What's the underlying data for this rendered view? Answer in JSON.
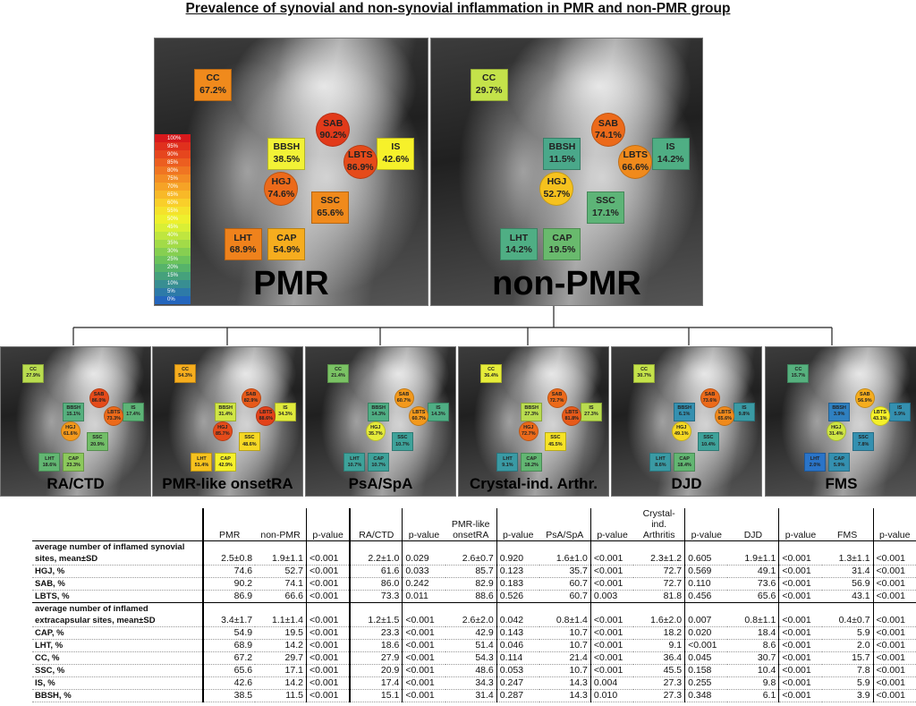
{
  "title": "Prevalence of synovial and non-synovial inflammation in PMR and non-PMR group",
  "colorbar": [
    "100%",
    "95%",
    "90%",
    "85%",
    "80%",
    "75%",
    "70%",
    "65%",
    "60%",
    "55%",
    "50%",
    "45%",
    "40%",
    "35%",
    "30%",
    "25%",
    "20%",
    "15%",
    "10%",
    "5%",
    "0%"
  ],
  "panels": [
    {
      "label": "PMR",
      "m": {
        "cc": {
          "name": "CC",
          "val": "67.2%",
          "color": "#f08a1c"
        },
        "sab": {
          "name": "SAB",
          "val": "90.2%",
          "color": "#e23a1a"
        },
        "bbsh": {
          "name": "BBSH",
          "val": "38.5%",
          "color": "#f2f236"
        },
        "is": {
          "name": "IS",
          "val": "42.6%",
          "color": "#f6f12a"
        },
        "lbts": {
          "name": "LBTS",
          "val": "86.9%",
          "color": "#e54b1a"
        },
        "hgj": {
          "name": "HGJ",
          "val": "74.6%",
          "color": "#ec6a1a"
        },
        "ssc": {
          "name": "SSC",
          "val": "65.6%",
          "color": "#f08a1c"
        },
        "lht": {
          "name": "LHT",
          "val": "68.9%",
          "color": "#ef821c"
        },
        "cap": {
          "name": "CAP",
          "val": "54.9%",
          "color": "#f6ad1e"
        }
      }
    },
    {
      "label": "non-PMR",
      "m": {
        "cc": {
          "name": "CC",
          "val": "29.7%",
          "color": "#c4e24a"
        },
        "sab": {
          "name": "SAB",
          "val": "74.1%",
          "color": "#ec6a1a"
        },
        "bbsh": {
          "name": "BBSH",
          "val": "11.5%",
          "color": "#4aa88a"
        },
        "is": {
          "name": "IS",
          "val": "14.2%",
          "color": "#4fae84"
        },
        "lbts": {
          "name": "LBTS",
          "val": "66.6%",
          "color": "#f08a1c"
        },
        "hgj": {
          "name": "HGJ",
          "val": "52.7%",
          "color": "#f6c21e"
        },
        "ssc": {
          "name": "SSC",
          "val": "17.1%",
          "color": "#5db477"
        },
        "lht": {
          "name": "LHT",
          "val": "14.2%",
          "color": "#4fae84"
        },
        "cap": {
          "name": "CAP",
          "val": "19.5%",
          "color": "#69ba6d"
        }
      }
    },
    {
      "label": "RA/CTD",
      "m": {
        "cc": {
          "name": "CC",
          "val": "27.9%",
          "color": "#b9dc4f"
        },
        "sab": {
          "name": "SAB",
          "val": "86.0%",
          "color": "#e54b1a"
        },
        "bbsh": {
          "name": "BBSH",
          "val": "15.1%",
          "color": "#56b07e"
        },
        "is": {
          "name": "IS",
          "val": "17.4%",
          "color": "#5db477"
        },
        "lbts": {
          "name": "LBTS",
          "val": "73.3%",
          "color": "#ec6a1a"
        },
        "hgj": {
          "name": "HGJ",
          "val": "61.6%",
          "color": "#f3991c"
        },
        "ssc": {
          "name": "SSC",
          "val": "20.9%",
          "color": "#72be68"
        },
        "lht": {
          "name": "LHT",
          "val": "18.6%",
          "color": "#62b672"
        },
        "cap": {
          "name": "CAP",
          "val": "23.3%",
          "color": "#8cc95c"
        }
      }
    },
    {
      "label": "PMR-like onsetRA",
      "m": {
        "cc": {
          "name": "CC",
          "val": "54.3%",
          "color": "#f6ad1e"
        },
        "sab": {
          "name": "SAB",
          "val": "82.9%",
          "color": "#e75a1a"
        },
        "bbsh": {
          "name": "BBSH",
          "val": "31.4%",
          "color": "#d0e644"
        },
        "is": {
          "name": "IS",
          "val": "34.3%",
          "color": "#e0ea3c"
        },
        "lbts": {
          "name": "LBTS",
          "val": "88.6%",
          "color": "#e3421a"
        },
        "hgj": {
          "name": "HGJ",
          "val": "85.7%",
          "color": "#e54b1a"
        },
        "ssc": {
          "name": "SSC",
          "val": "48.6%",
          "color": "#f6d824"
        },
        "lht": {
          "name": "LHT",
          "val": "51.4%",
          "color": "#f6c21e"
        },
        "cap": {
          "name": "CAP",
          "val": "42.9%",
          "color": "#f6f12a"
        }
      }
    },
    {
      "label": "PsA/SpA",
      "m": {
        "cc": {
          "name": "CC",
          "val": "21.4%",
          "color": "#7ac264"
        },
        "sab": {
          "name": "SAB",
          "val": "60.7%",
          "color": "#f3991c"
        },
        "bbsh": {
          "name": "BBSH",
          "val": "14.3%",
          "color": "#4fae84"
        },
        "is": {
          "name": "IS",
          "val": "14.3%",
          "color": "#4fae84"
        },
        "lbts": {
          "name": "LBTS",
          "val": "60.7%",
          "color": "#f3991c"
        },
        "hgj": {
          "name": "HGJ",
          "val": "35.7%",
          "color": "#e6ec3a"
        },
        "ssc": {
          "name": "SSC",
          "val": "10.7%",
          "color": "#3ea29a"
        },
        "lht": {
          "name": "LHT",
          "val": "10.7%",
          "color": "#3ea29a"
        },
        "cap": {
          "name": "CAP",
          "val": "10.7%",
          "color": "#3ea29a"
        }
      }
    },
    {
      "label": "Crystal-ind. Arthr.",
      "m": {
        "cc": {
          "name": "CC",
          "val": "36.4%",
          "color": "#e6ec3a"
        },
        "sab": {
          "name": "SAB",
          "val": "72.7%",
          "color": "#ec6a1a"
        },
        "bbsh": {
          "name": "BBSH",
          "val": "27.3%",
          "color": "#b9dc4f"
        },
        "is": {
          "name": "IS",
          "val": "27.3%",
          "color": "#b9dc4f"
        },
        "lbts": {
          "name": "LBTS",
          "val": "81.8%",
          "color": "#e75a1a"
        },
        "hgj": {
          "name": "HGJ",
          "val": "72.7%",
          "color": "#ec6a1a"
        },
        "ssc": {
          "name": "SSC",
          "val": "45.5%",
          "color": "#f6e326"
        },
        "lht": {
          "name": "LHT",
          "val": "9.1%",
          "color": "#3a9aa4"
        },
        "cap": {
          "name": "CAP",
          "val": "18.2%",
          "color": "#62b672"
        }
      }
    },
    {
      "label": "DJD",
      "m": {
        "cc": {
          "name": "CC",
          "val": "30.7%",
          "color": "#c4e24a"
        },
        "sab": {
          "name": "SAB",
          "val": "73.6%",
          "color": "#ec6a1a"
        },
        "bbsh": {
          "name": "BBSH",
          "val": "6.1%",
          "color": "#3490b0"
        },
        "is": {
          "name": "IS",
          "val": "9.8%",
          "color": "#3a9aa4"
        },
        "lbts": {
          "name": "LBTS",
          "val": "65.6%",
          "color": "#f08a1c"
        },
        "hgj": {
          "name": "HGJ",
          "val": "49.1%",
          "color": "#f6d824"
        },
        "ssc": {
          "name": "SSC",
          "val": "10.4%",
          "color": "#3ea29a"
        },
        "lht": {
          "name": "LHT",
          "val": "8.6%",
          "color": "#3a9aa4"
        },
        "cap": {
          "name": "CAP",
          "val": "18.4%",
          "color": "#62b672"
        }
      }
    },
    {
      "label": "FMS",
      "m": {
        "cc": {
          "name": "CC",
          "val": "15.7%",
          "color": "#56b07e"
        },
        "sab": {
          "name": "SAB",
          "val": "56.9%",
          "color": "#f6ad1e"
        },
        "bbsh": {
          "name": "BBSH",
          "val": "3.9%",
          "color": "#2f80c0"
        },
        "is": {
          "name": "IS",
          "val": "5.9%",
          "color": "#3490b0"
        },
        "lbts": {
          "name": "LBTS",
          "val": "43.1%",
          "color": "#f6f12a"
        },
        "hgj": {
          "name": "HGJ",
          "val": "31.4%",
          "color": "#d0e644"
        },
        "ssc": {
          "name": "SSC",
          "val": "7.8%",
          "color": "#3490b0"
        },
        "lht": {
          "name": "LHT",
          "val": "2.0%",
          "color": "#2a74c8"
        },
        "cap": {
          "name": "CAP",
          "val": "5.9%",
          "color": "#3490b0"
        }
      }
    }
  ],
  "table": {
    "headers": [
      "PMR",
      "non-PMR",
      "p-value",
      "RA/CTD",
      "p-value",
      "PMR-like onsetRA",
      "p-value",
      "PsA/SpA",
      "p-value",
      "Crystal-ind. Arthritis",
      "p-value",
      "DJD",
      "p-value",
      "FMS",
      "p-value"
    ],
    "rows": [
      {
        "label1": "average number of inflamed synovial",
        "label2": "sites, mean±SD",
        "cells": [
          "2.5±0.8",
          "1.9±1.1",
          "<0.001",
          "2.2±1.0",
          "0.029",
          "2.6±0.7",
          "0.920",
          "1.6±1.0",
          "<0.001",
          "2.3±1.2",
          "0.605",
          "1.9±1.1",
          "<0.001",
          "1.3±1.1",
          "<0.001"
        ]
      },
      {
        "label1": "HGJ, %",
        "cells": [
          "74.6",
          "52.7",
          "<0.001",
          "61.6",
          "0.033",
          "85.7",
          "0.123",
          "35.7",
          "<0.001",
          "72.7",
          "0.569",
          "49.1",
          "<0.001",
          "31.4",
          "<0.001"
        ]
      },
      {
        "label1": "SAB, %",
        "cells": [
          "90.2",
          "74.1",
          "<0.001",
          "86.0",
          "0.242",
          "82.9",
          "0.183",
          "60.7",
          "<0.001",
          "72.7",
          "0.110",
          "73.6",
          "<0.001",
          "56.9",
          "<0.001"
        ]
      },
      {
        "label1": "LBTS, %",
        "cells": [
          "86.9",
          "66.6",
          "<0.001",
          "73.3",
          "0.011",
          "88.6",
          "0.526",
          "60.7",
          "0.003",
          "81.8",
          "0.456",
          "65.6",
          "<0.001",
          "43.1",
          "<0.001"
        ]
      },
      {
        "label1": "average number of inflamed",
        "label2": "extracapsular sites, mean±SD",
        "cells": [
          "3.4±1.7",
          "1.1±1.4",
          "<0.001",
          "1.2±1.5",
          "<0.001",
          "2.6±2.0",
          "0.042",
          "0.8±1.4",
          "<0.001",
          "1.6±2.0",
          "0.007",
          "0.8±1.1",
          "<0.001",
          "0.4±0.7",
          "<0.001"
        ]
      },
      {
        "label1": "CAP, %",
        "cells": [
          "54.9",
          "19.5",
          "<0.001",
          "23.3",
          "<0.001",
          "42.9",
          "0.143",
          "10.7",
          "<0.001",
          "18.2",
          "0.020",
          "18.4",
          "<0.001",
          "5.9",
          "<0.001"
        ]
      },
      {
        "label1": "LHT, %",
        "cells": [
          "68.9",
          "14.2",
          "<0.001",
          "18.6",
          "<0.001",
          "51.4",
          "0.046",
          "10.7",
          "<0.001",
          "9.1",
          "<0.001",
          "8.6",
          "<0.001",
          "2.0",
          "<0.001"
        ]
      },
      {
        "label1": "CC, %",
        "cells": [
          "67.2",
          "29.7",
          "<0.001",
          "27.9",
          "<0.001",
          "54.3",
          "0.114",
          "21.4",
          "<0.001",
          "36.4",
          "0.045",
          "30.7",
          "<0.001",
          "15.7",
          "<0.001"
        ]
      },
      {
        "label1": "SSC, %",
        "cells": [
          "65.6",
          "17.1",
          "<0.001",
          "20.9",
          "<0.001",
          "48.6",
          "0.053",
          "10.7",
          "<0.001",
          "45.5",
          "0.158",
          "10.4",
          "<0.001",
          "7.8",
          "<0.001"
        ]
      },
      {
        "label1": "IS, %",
        "cells": [
          "42.6",
          "14.2",
          "<0.001",
          "17.4",
          "<0.001",
          "34.3",
          "0.247",
          "14.3",
          "0.004",
          "27.3",
          "0.255",
          "9.8",
          "<0.001",
          "5.9",
          "<0.001"
        ]
      },
      {
        "label1": "BBSH, %",
        "cells": [
          "38.5",
          "11.5",
          "<0.001",
          "15.1",
          "<0.001",
          "31.4",
          "0.287",
          "14.3",
          "0.010",
          "27.3",
          "0.348",
          "6.1",
          "<0.001",
          "3.9",
          "<0.001"
        ]
      }
    ]
  }
}
